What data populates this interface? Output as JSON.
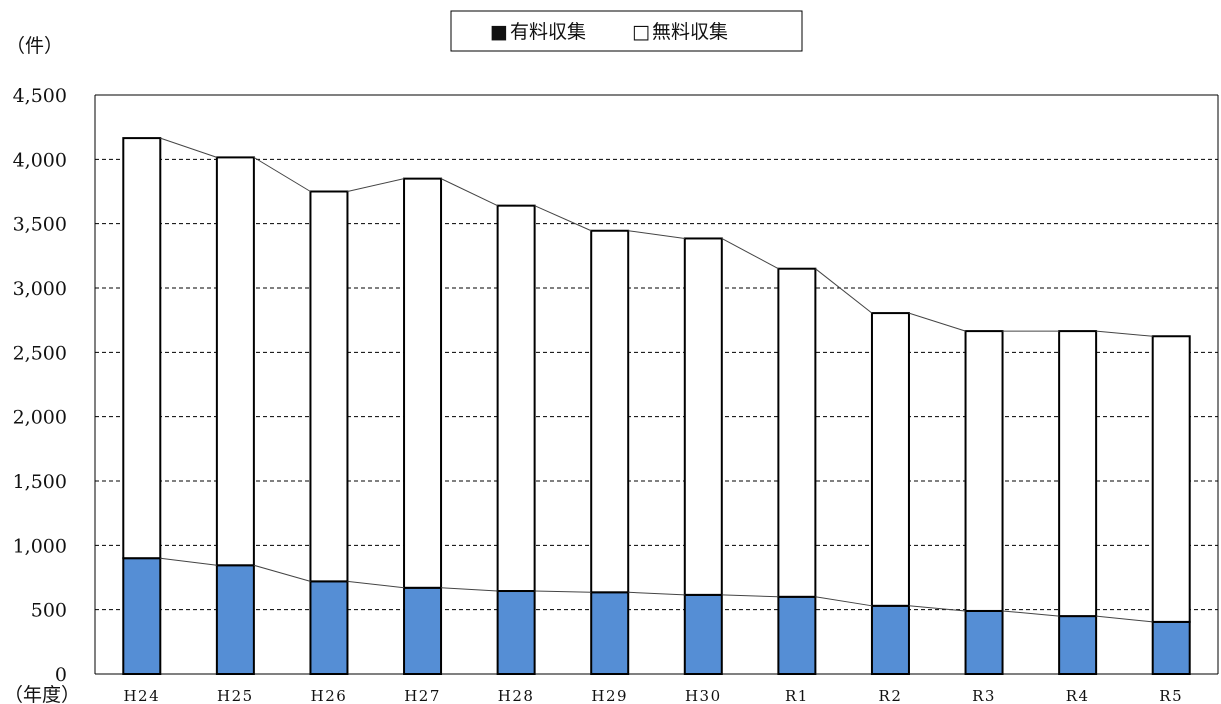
{
  "chart_data": {
    "type": "bar",
    "stacked": true,
    "categories": [
      "H24",
      "H25",
      "H26",
      "H27",
      "H28",
      "H29",
      "H30",
      "R1",
      "R2",
      "R3",
      "R4",
      "R5"
    ],
    "series": [
      {
        "name": "有料収集",
        "color": "#558ed5",
        "values": [
          900,
          845,
          720,
          670,
          645,
          635,
          615,
          600,
          530,
          490,
          450,
          405
        ]
      },
      {
        "name": "無料収集",
        "color": "#ffffff",
        "values": [
          3265,
          3170,
          3030,
          3180,
          2995,
          2810,
          2770,
          2550,
          2275,
          2175,
          2215,
          2220
        ]
      }
    ],
    "ylabel": "（件）",
    "xlabel": "（年度）",
    "ylim": [
      0,
      4500
    ],
    "yticks": [
      "0",
      "500",
      "1,000",
      "1,500",
      "2,000",
      "2,500",
      "3,000",
      "3,500",
      "4,000",
      "4,500"
    ],
    "grid": true,
    "legend_position": "top-center",
    "legend_icons": [
      "■",
      "□"
    ]
  }
}
